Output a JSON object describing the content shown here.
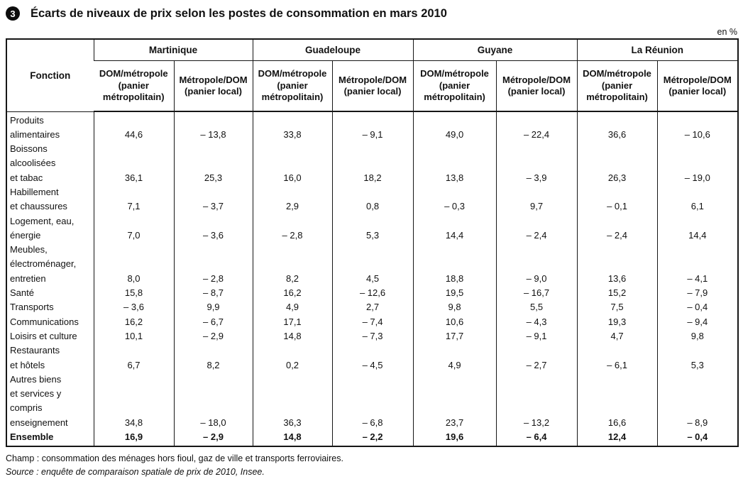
{
  "header": {
    "figure_number": "3",
    "title": "Écarts de niveaux de prix selon les postes de consommation en mars 2010",
    "unit": "en %"
  },
  "table": {
    "corner_header": "Fonction",
    "regions": [
      "Martinique",
      "Guadeloupe",
      "Guyane",
      "La Réunion"
    ],
    "sub_headers": [
      "DOM/métropole (panier métropolitain)",
      "Métropole/DOM (panier local)"
    ],
    "rows": [
      {
        "label_lines": [
          "Produits alimentaires"
        ],
        "bold": false,
        "values": [
          "44,6",
          "– 13,8",
          "33,8",
          "– 9,1",
          "49,0",
          "– 22,4",
          "36,6",
          "– 10,6"
        ]
      },
      {
        "label_lines": [
          "Boissons alcoolisées",
          "et tabac"
        ],
        "bold": false,
        "values": [
          "36,1",
          "25,3",
          "16,0",
          "18,2",
          "13,8",
          "– 3,9",
          "26,3",
          "– 19,0"
        ]
      },
      {
        "label_lines": [
          "Habillement",
          "et chaussures"
        ],
        "bold": false,
        "values": [
          "7,1",
          "– 3,7",
          "2,9",
          "0,8",
          "– 0,3",
          "9,7",
          "– 0,1",
          "6,1"
        ]
      },
      {
        "label_lines": [
          "Logement, eau,",
          "énergie"
        ],
        "bold": false,
        "values": [
          "7,0",
          "– 3,6",
          "– 2,8",
          "5,3",
          "14,4",
          "– 2,4",
          "– 2,4",
          "14,4"
        ]
      },
      {
        "label_lines": [
          "Meubles,",
          "électroménager,",
          "entretien"
        ],
        "bold": false,
        "values": [
          "8,0",
          "– 2,8",
          "8,2",
          "4,5",
          "18,8",
          "– 9,0",
          "13,6",
          "– 4,1"
        ]
      },
      {
        "label_lines": [
          "Santé"
        ],
        "bold": false,
        "values": [
          "15,8",
          "– 8,7",
          "16,2",
          "– 12,6",
          "19,5",
          "– 16,7",
          "15,2",
          "– 7,9"
        ]
      },
      {
        "label_lines": [
          "Transports"
        ],
        "bold": false,
        "values": [
          "– 3,6",
          "9,9",
          "4,9",
          "2,7",
          "9,8",
          "5,5",
          "7,5",
          "– 0,4"
        ]
      },
      {
        "label_lines": [
          "Communications"
        ],
        "bold": false,
        "values": [
          "16,2",
          "– 6,7",
          "17,1",
          "– 7,4",
          "10,6",
          "– 4,3",
          "19,3",
          "– 9,4"
        ]
      },
      {
        "label_lines": [
          "Loisirs et culture"
        ],
        "bold": false,
        "values": [
          "10,1",
          "– 2,9",
          "14,8",
          "– 7,3",
          "17,7",
          "– 9,1",
          "4,7",
          "9,8"
        ]
      },
      {
        "label_lines": [
          "Restaurants",
          "et hôtels"
        ],
        "bold": false,
        "values": [
          "6,7",
          "8,2",
          "0,2",
          "– 4,5",
          "4,9",
          "– 2,7",
          "– 6,1",
          "5,3"
        ]
      },
      {
        "label_lines": [
          "Autres biens",
          "et services y compris",
          "enseignement"
        ],
        "bold": false,
        "values": [
          "34,8",
          "– 18,0",
          "36,3",
          "– 6,8",
          "23,7",
          "– 13,2",
          "16,6",
          "– 8,9"
        ]
      },
      {
        "label_lines": [
          "Ensemble"
        ],
        "bold": true,
        "values": [
          "16,9",
          "– 2,9",
          "14,8",
          "– 2,2",
          "19,6",
          "– 6,4",
          "12,4",
          "– 0,4"
        ]
      }
    ]
  },
  "footer": {
    "champ": "Champ : consommation des ménages hors fioul, gaz de ville et transports ferroviaires.",
    "source": "Source : enquête de comparaison spatiale de prix de 2010, Insee."
  }
}
